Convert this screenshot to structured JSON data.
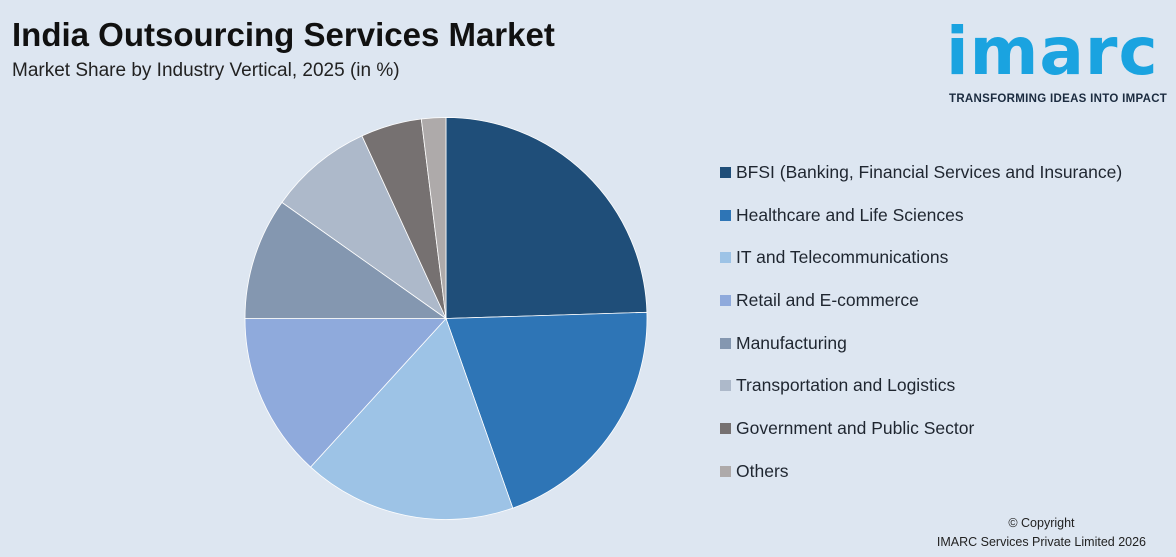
{
  "title": "India Outsourcing Services Market",
  "subtitle": "Market Share by Industry Vertical, 2025 (in %)",
  "logo": {
    "wordmark": "imarc",
    "tagline": "TRANSFORMING IDEAS INTO IMPACT",
    "color": "#1aa3e0"
  },
  "copyright": {
    "line1": "© Copyright",
    "line2": "IMARC Services Private Limited 2026"
  },
  "chart_data": {
    "type": "pie",
    "title": "India Outsourcing Services Market",
    "subtitle": "Market Share by Industry Vertical, 2025 (in %)",
    "legend_position": "right",
    "categories": [
      "BFSI (Banking, Financial Services and Insurance)",
      "Healthcare and Life Sciences",
      "IT and Telecommunications",
      "Retail and E-commerce",
      "Manufacturing",
      "Transportation and Logistics",
      "Government and Public Sector",
      "Others"
    ],
    "values": [
      25,
      20.5,
      17.5,
      13.5,
      10,
      8.5,
      5,
      2
    ],
    "colors": [
      "#1f4e79",
      "#2e75b6",
      "#9dc3e6",
      "#8faadc",
      "#8497b0",
      "#adb9ca",
      "#767171",
      "#aeaaaa"
    ]
  }
}
